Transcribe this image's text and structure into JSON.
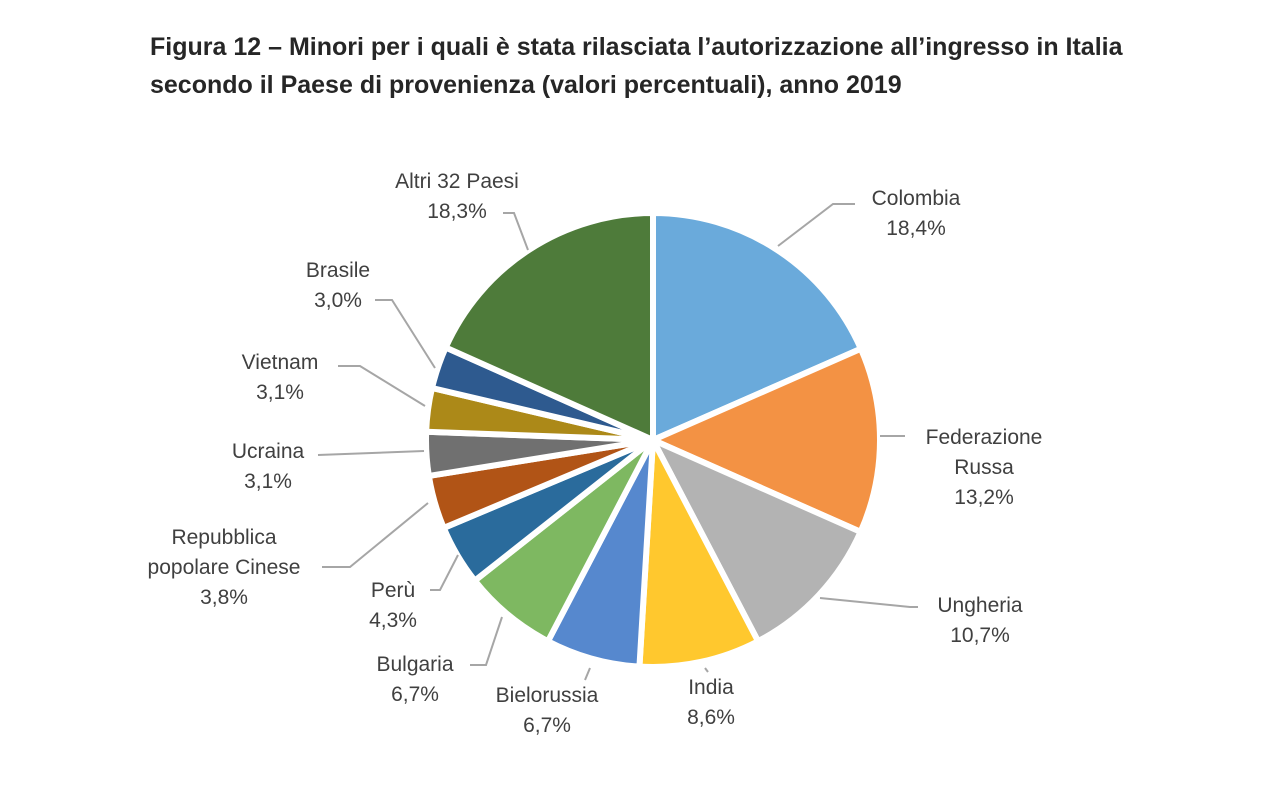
{
  "title_line1": "Figura 12 – Minori per i quali è stata rilasciata l’autorizzazione all’ingresso in Italia",
  "title_line2": "secondo il Paese di provenienza (valori percentuali), anno 2019",
  "chart_data": {
    "type": "pie",
    "title": "Figura 12 – Minori per i quali è stata rilasciata l’autorizzazione all’ingresso in Italia secondo il Paese di provenienza (valori percentuali), anno 2019",
    "categories": [
      "Colombia",
      "Federazione Russa",
      "Ungheria",
      "India",
      "Bielorussia",
      "Bulgaria",
      "Perù",
      "Repubblica popolare Cinese",
      "Ucraina",
      "Vietnam",
      "Brasile",
      "Altri 32 Paesi"
    ],
    "values": [
      18.4,
      13.2,
      10.7,
      8.6,
      6.7,
      6.7,
      4.3,
      3.8,
      3.1,
      3.1,
      3.0,
      18.3
    ],
    "value_labels": [
      "18,4%",
      "13,2%",
      "10,7%",
      "8,6%",
      "6,7%",
      "6,7%",
      "4,3%",
      "3,8%",
      "3,1%",
      "3,1%",
      "3,0%",
      "18,3%"
    ],
    "label_lines": [
      [
        "Colombia"
      ],
      [
        "Federazione",
        "Russa"
      ],
      [
        "Ungheria"
      ],
      [
        "India"
      ],
      [
        "Bielorussia"
      ],
      [
        "Bulgaria"
      ],
      [
        "Perù"
      ],
      [
        "Repubblica",
        "popolare Cinese"
      ],
      [
        "Ucraina"
      ],
      [
        "Vietnam"
      ],
      [
        "Brasile"
      ],
      [
        "Altri 32 Paesi"
      ]
    ],
    "colors": [
      "#6AAADB",
      "#F39244",
      "#B3B3B3",
      "#FFC82E",
      "#5688CE",
      "#7EB861",
      "#2A6B9C",
      "#B15416",
      "#707070",
      "#AC8918",
      "#2E5A8F",
      "#4E7B3A"
    ],
    "start_angle_deg": 0,
    "direction": "clockwise"
  }
}
